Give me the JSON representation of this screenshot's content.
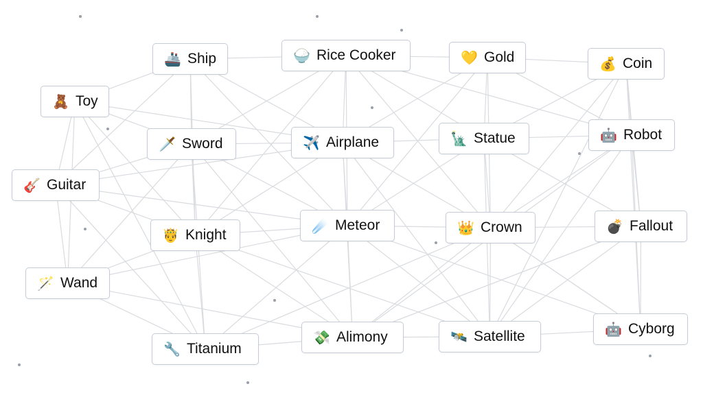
{
  "nodes": [
    {
      "label": "Ship",
      "icon": "🚢",
      "icon_name": "ship-icon"
    },
    {
      "label": "Rice Cooker",
      "icon": "🍚",
      "icon_name": "rice-cooker-icon"
    },
    {
      "label": "Gold",
      "icon": "💛",
      "icon_name": "yellow-heart-icon"
    },
    {
      "label": "Coin",
      "icon": "💰",
      "icon_name": "money-bag-icon"
    },
    {
      "label": "Toy",
      "icon": "🧸",
      "icon_name": "teddy-bear-icon"
    },
    {
      "label": "Sword",
      "icon": "🗡️",
      "icon_name": "dagger-icon"
    },
    {
      "label": "Airplane",
      "icon": "✈️",
      "icon_name": "airplane-icon"
    },
    {
      "label": "Statue",
      "icon": "🗽",
      "icon_name": "statue-of-liberty-icon"
    },
    {
      "label": "Robot",
      "icon": "🤖",
      "icon_name": "robot-icon"
    },
    {
      "label": "Guitar",
      "icon": "🎸",
      "icon_name": "guitar-icon"
    },
    {
      "label": "Knight",
      "icon": "🤴",
      "icon_name": "prince-icon"
    },
    {
      "label": "Meteor",
      "icon": "☄️",
      "icon_name": "comet-icon"
    },
    {
      "label": "Crown",
      "icon": "👑",
      "icon_name": "crown-icon"
    },
    {
      "label": "Fallout",
      "icon": "💣",
      "icon_name": "bomb-icon"
    },
    {
      "label": "Wand",
      "icon": "🪄",
      "icon_name": "magic-wand-icon"
    },
    {
      "label": "Titanium",
      "icon": "🔧",
      "icon_name": "wrench-icon"
    },
    {
      "label": "Alimony",
      "icon": "💸",
      "icon_name": "money-with-wings-icon"
    },
    {
      "label": "Satellite",
      "icon": "🛰️",
      "icon_name": "satellite-icon"
    },
    {
      "label": "Cyborg",
      "icon": "🤖",
      "icon_name": "robot-icon"
    }
  ],
  "edges": [
    [
      0,
      1
    ],
    [
      0,
      5
    ],
    [
      0,
      4
    ],
    [
      0,
      6
    ],
    [
      0,
      11
    ],
    [
      0,
      10
    ],
    [
      1,
      2
    ],
    [
      1,
      6
    ],
    [
      1,
      5
    ],
    [
      1,
      7
    ],
    [
      1,
      11
    ],
    [
      1,
      12
    ],
    [
      2,
      3
    ],
    [
      2,
      7
    ],
    [
      2,
      6
    ],
    [
      2,
      12
    ],
    [
      2,
      8
    ],
    [
      3,
      8
    ],
    [
      3,
      13
    ],
    [
      3,
      7
    ],
    [
      3,
      12
    ],
    [
      4,
      9
    ],
    [
      4,
      5
    ],
    [
      4,
      14
    ],
    [
      4,
      10
    ],
    [
      4,
      6
    ],
    [
      5,
      6
    ],
    [
      5,
      10
    ],
    [
      5,
      9
    ],
    [
      5,
      11
    ],
    [
      5,
      15
    ],
    [
      6,
      7
    ],
    [
      6,
      11
    ],
    [
      6,
      10
    ],
    [
      6,
      12
    ],
    [
      6,
      16
    ],
    [
      7,
      8
    ],
    [
      7,
      12
    ],
    [
      7,
      11
    ],
    [
      7,
      13
    ],
    [
      7,
      17
    ],
    [
      8,
      13
    ],
    [
      8,
      12
    ],
    [
      8,
      18
    ],
    [
      8,
      17
    ],
    [
      9,
      14
    ],
    [
      9,
      10
    ],
    [
      9,
      15
    ],
    [
      9,
      11
    ],
    [
      10,
      11
    ],
    [
      10,
      15
    ],
    [
      10,
      14
    ],
    [
      10,
      16
    ],
    [
      11,
      12
    ],
    [
      11,
      16
    ],
    [
      11,
      17
    ],
    [
      11,
      15
    ],
    [
      12,
      13
    ],
    [
      12,
      17
    ],
    [
      12,
      16
    ],
    [
      12,
      18
    ],
    [
      13,
      18
    ],
    [
      13,
      17
    ],
    [
      14,
      15
    ],
    [
      14,
      16
    ],
    [
      14,
      11
    ],
    [
      15,
      16
    ],
    [
      15,
      12
    ],
    [
      16,
      17
    ],
    [
      16,
      13
    ],
    [
      17,
      18
    ],
    [
      17,
      10
    ],
    [
      18,
      12
    ],
    [
      18,
      11
    ],
    [
      0,
      9
    ],
    [
      2,
      11
    ],
    [
      3,
      17
    ],
    [
      4,
      15
    ],
    [
      1,
      10
    ],
    [
      8,
      16
    ],
    [
      6,
      17
    ],
    [
      5,
      16
    ],
    [
      14,
      5
    ],
    [
      9,
      6
    ],
    [
      13,
      16
    ],
    [
      3,
      18
    ],
    [
      1,
      8
    ]
  ],
  "colors": {
    "edge": "#d9dbdf",
    "border": "#c6ccd6",
    "background": "#ffffff"
  }
}
